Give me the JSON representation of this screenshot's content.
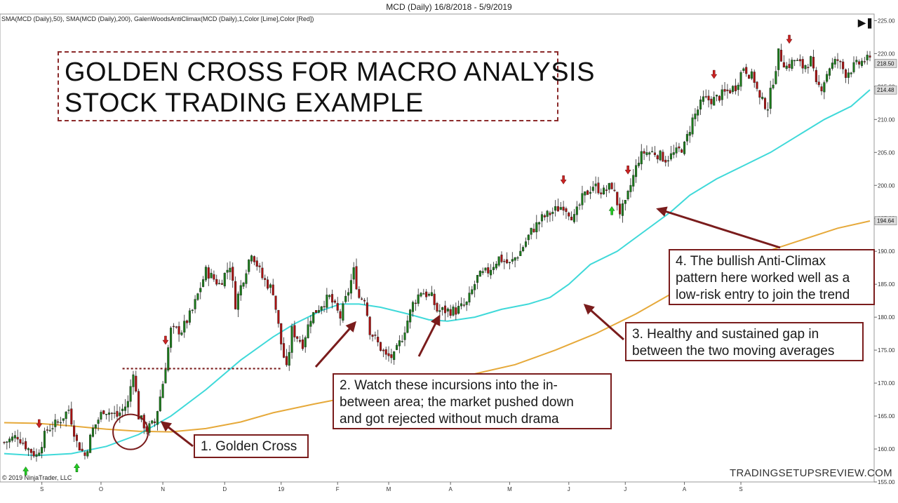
{
  "header": {
    "title": "MCD (Daily)  16/8/2018 - 5/9/2019"
  },
  "indicators_label": "SMA(MCD (Daily),50), SMA(MCD (Daily),200), GalenWoodsAntiClimax(MCD (Daily),1,Color [Lime],Color [Red])",
  "copyright": "© 2019 NinjaTrader, LLC",
  "watermark": "TRADINGSETUPSREVIEW.COM",
  "title_lines": [
    "GOLDEN CROSS FOR MACRO ANALYSIS",
    "STOCK TRADING EXAMPLE"
  ],
  "callouts": [
    {
      "lines": [
        "1. Golden Cross"
      ]
    },
    {
      "lines": [
        "2. Watch these incursions into the in-",
        "between area; the market pushed down",
        "and got rejected without much drama"
      ]
    },
    {
      "lines": [
        "3. Healthy and sustained gap in",
        "between the two moving averages"
      ]
    },
    {
      "lines": [
        "4. The bullish Anti-Climax",
        "pattern here worked well as a",
        "low-risk entry to join the trend"
      ]
    }
  ],
  "price_labels": {
    "last": "218.50",
    "sma50": "214.48",
    "sma200": "194.64"
  },
  "play_icon": "skip-to-end-icon",
  "colors": {
    "up": "#1a7a1a",
    "down": "#aa1111",
    "sma50": "#3fd9d9",
    "sma200": "#e6a93a",
    "annotation": "#7a1c1c",
    "signal_up": "#22cc22",
    "signal_down": "#cc2222"
  },
  "chart_data": {
    "type": "candlestick",
    "title": "MCD (Daily)  16/8/2018 - 5/9/2019",
    "ylim": [
      155,
      226
    ],
    "y_ticks": [
      155,
      160,
      165,
      170,
      175,
      180,
      185,
      190,
      195,
      200,
      205,
      210,
      215,
      220,
      225
    ],
    "y_tick_labels": [
      "155.00",
      "160.00",
      "165.00",
      "170.00",
      "175.00",
      "180.00",
      "185.00",
      "190.00",
      "195.00",
      "200.00",
      "205.00",
      "210.00",
      "215.00",
      "220.00",
      "225.00"
    ],
    "x_ticks": [
      "S",
      "O",
      "N",
      "D",
      "19",
      "F",
      "M",
      "A",
      "M",
      "J",
      "J",
      "A",
      "S"
    ],
    "series": [
      {
        "name": "SMA(MCD (Daily),50)",
        "points": [
          [
            0,
            159.3
          ],
          [
            12,
            159.0
          ],
          [
            25,
            159.3
          ],
          [
            38,
            160.4
          ],
          [
            50,
            162.2
          ],
          [
            62,
            165.0
          ],
          [
            75,
            169.0
          ],
          [
            88,
            173.5
          ],
          [
            100,
            177.0
          ],
          [
            108,
            179.0
          ],
          [
            118,
            181.0
          ],
          [
            125,
            182.0
          ],
          [
            132,
            182.0
          ],
          [
            140,
            181.5
          ],
          [
            150,
            180.5
          ],
          [
            158,
            179.6
          ],
          [
            165,
            179.4
          ],
          [
            175,
            180.0
          ],
          [
            185,
            181.2
          ],
          [
            195,
            182.0
          ],
          [
            203,
            183.0
          ],
          [
            210,
            185.0
          ],
          [
            218,
            188.0
          ],
          [
            228,
            190.0
          ],
          [
            238,
            193.0
          ],
          [
            248,
            196.0
          ],
          [
            255,
            198.5
          ],
          [
            265,
            201.0
          ],
          [
            275,
            203.0
          ],
          [
            285,
            205.0
          ],
          [
            295,
            207.5
          ],
          [
            305,
            210.0
          ],
          [
            315,
            212.0
          ],
          [
            322,
            214.5
          ]
        ]
      },
      {
        "name": "SMA(MCD (Daily),200)",
        "points": [
          [
            0,
            164.0
          ],
          [
            12,
            163.9
          ],
          [
            25,
            163.5
          ],
          [
            38,
            163.0
          ],
          [
            50,
            162.7
          ],
          [
            62,
            162.6
          ],
          [
            75,
            163.1
          ],
          [
            88,
            164.1
          ],
          [
            100,
            165.5
          ],
          [
            115,
            166.8
          ],
          [
            130,
            168.0
          ],
          [
            145,
            169.2
          ],
          [
            160,
            170.2
          ],
          [
            175,
            171.4
          ],
          [
            190,
            172.8
          ],
          [
            205,
            175.0
          ],
          [
            220,
            177.5
          ],
          [
            235,
            180.5
          ],
          [
            250,
            184.0
          ],
          [
            265,
            187.0
          ],
          [
            280,
            189.5
          ],
          [
            295,
            191.5
          ],
          [
            310,
            193.5
          ],
          [
            322,
            194.6
          ]
        ]
      }
    ],
    "price_path": [
      [
        0,
        161
      ],
      [
        5,
        162
      ],
      [
        9,
        160
      ],
      [
        12,
        159
      ],
      [
        16,
        163
      ],
      [
        20,
        164
      ],
      [
        24,
        166
      ],
      [
        27,
        161
      ],
      [
        30,
        159
      ],
      [
        33,
        163
      ],
      [
        37,
        166
      ],
      [
        42,
        165
      ],
      [
        46,
        167
      ],
      [
        48,
        172
      ],
      [
        50,
        165
      ],
      [
        53,
        163
      ],
      [
        56,
        164
      ],
      [
        59,
        170
      ],
      [
        62,
        178
      ],
      [
        66,
        178
      ],
      [
        70,
        181
      ],
      [
        75,
        187
      ],
      [
        80,
        185
      ],
      [
        84,
        188
      ],
      [
        86,
        182
      ],
      [
        89,
        186
      ],
      [
        92,
        190
      ],
      [
        96,
        186
      ],
      [
        100,
        184
      ],
      [
        103,
        176
      ],
      [
        105,
        172
      ],
      [
        107,
        178
      ],
      [
        111,
        176
      ],
      [
        114,
        180
      ],
      [
        118,
        182
      ],
      [
        121,
        183
      ],
      [
        125,
        180
      ],
      [
        128,
        184
      ],
      [
        130,
        187
      ],
      [
        132,
        183
      ],
      [
        134,
        183
      ],
      [
        136,
        178
      ],
      [
        139,
        176
      ],
      [
        142,
        174
      ],
      [
        145,
        174
      ],
      [
        148,
        177
      ],
      [
        152,
        182
      ],
      [
        155,
        184
      ],
      [
        159,
        183
      ],
      [
        161,
        181
      ],
      [
        164,
        181
      ],
      [
        168,
        181
      ],
      [
        172,
        182
      ],
      [
        176,
        186
      ],
      [
        180,
        187
      ],
      [
        184,
        189
      ],
      [
        188,
        188
      ],
      [
        192,
        190
      ],
      [
        196,
        193
      ],
      [
        200,
        195
      ],
      [
        204,
        196
      ],
      [
        208,
        197
      ],
      [
        212,
        195
      ],
      [
        215,
        198
      ],
      [
        219,
        200
      ],
      [
        223,
        199
      ],
      [
        226,
        200
      ],
      [
        229,
        196
      ],
      [
        231,
        197
      ],
      [
        233,
        200
      ],
      [
        236,
        204
      ],
      [
        238,
        205
      ],
      [
        242,
        205
      ],
      [
        246,
        204
      ],
      [
        250,
        205
      ],
      [
        253,
        206
      ],
      [
        256,
        210
      ],
      [
        260,
        213
      ],
      [
        264,
        213
      ],
      [
        268,
        214
      ],
      [
        272,
        215
      ],
      [
        275,
        218
      ],
      [
        279,
        216
      ],
      [
        281,
        213
      ],
      [
        284,
        212
      ],
      [
        286,
        216
      ],
      [
        288,
        220
      ],
      [
        291,
        218
      ],
      [
        294,
        219
      ],
      [
        297,
        218
      ],
      [
        300,
        219
      ],
      [
        302,
        215
      ],
      [
        304,
        215
      ],
      [
        307,
        218
      ],
      [
        310,
        219
      ],
      [
        313,
        217
      ],
      [
        316,
        218
      ],
      [
        320,
        219
      ],
      [
        322,
        219
      ]
    ],
    "signals": [
      {
        "bar": 8,
        "direction": "up"
      },
      {
        "bar": 27,
        "direction": "up"
      },
      {
        "bar": 13,
        "direction": "down"
      },
      {
        "bar": 60,
        "direction": "down"
      },
      {
        "bar": 208,
        "direction": "down"
      },
      {
        "bar": 226,
        "direction": "up"
      },
      {
        "bar": 232,
        "direction": "down"
      },
      {
        "bar": 264,
        "direction": "down"
      },
      {
        "bar": 292,
        "direction": "down"
      }
    ],
    "resistance": {
      "level": 172.2,
      "from_bar": 44,
      "to_bar": 103
    },
    "golden_cross": {
      "bar": 47,
      "value": 162.6
    }
  }
}
